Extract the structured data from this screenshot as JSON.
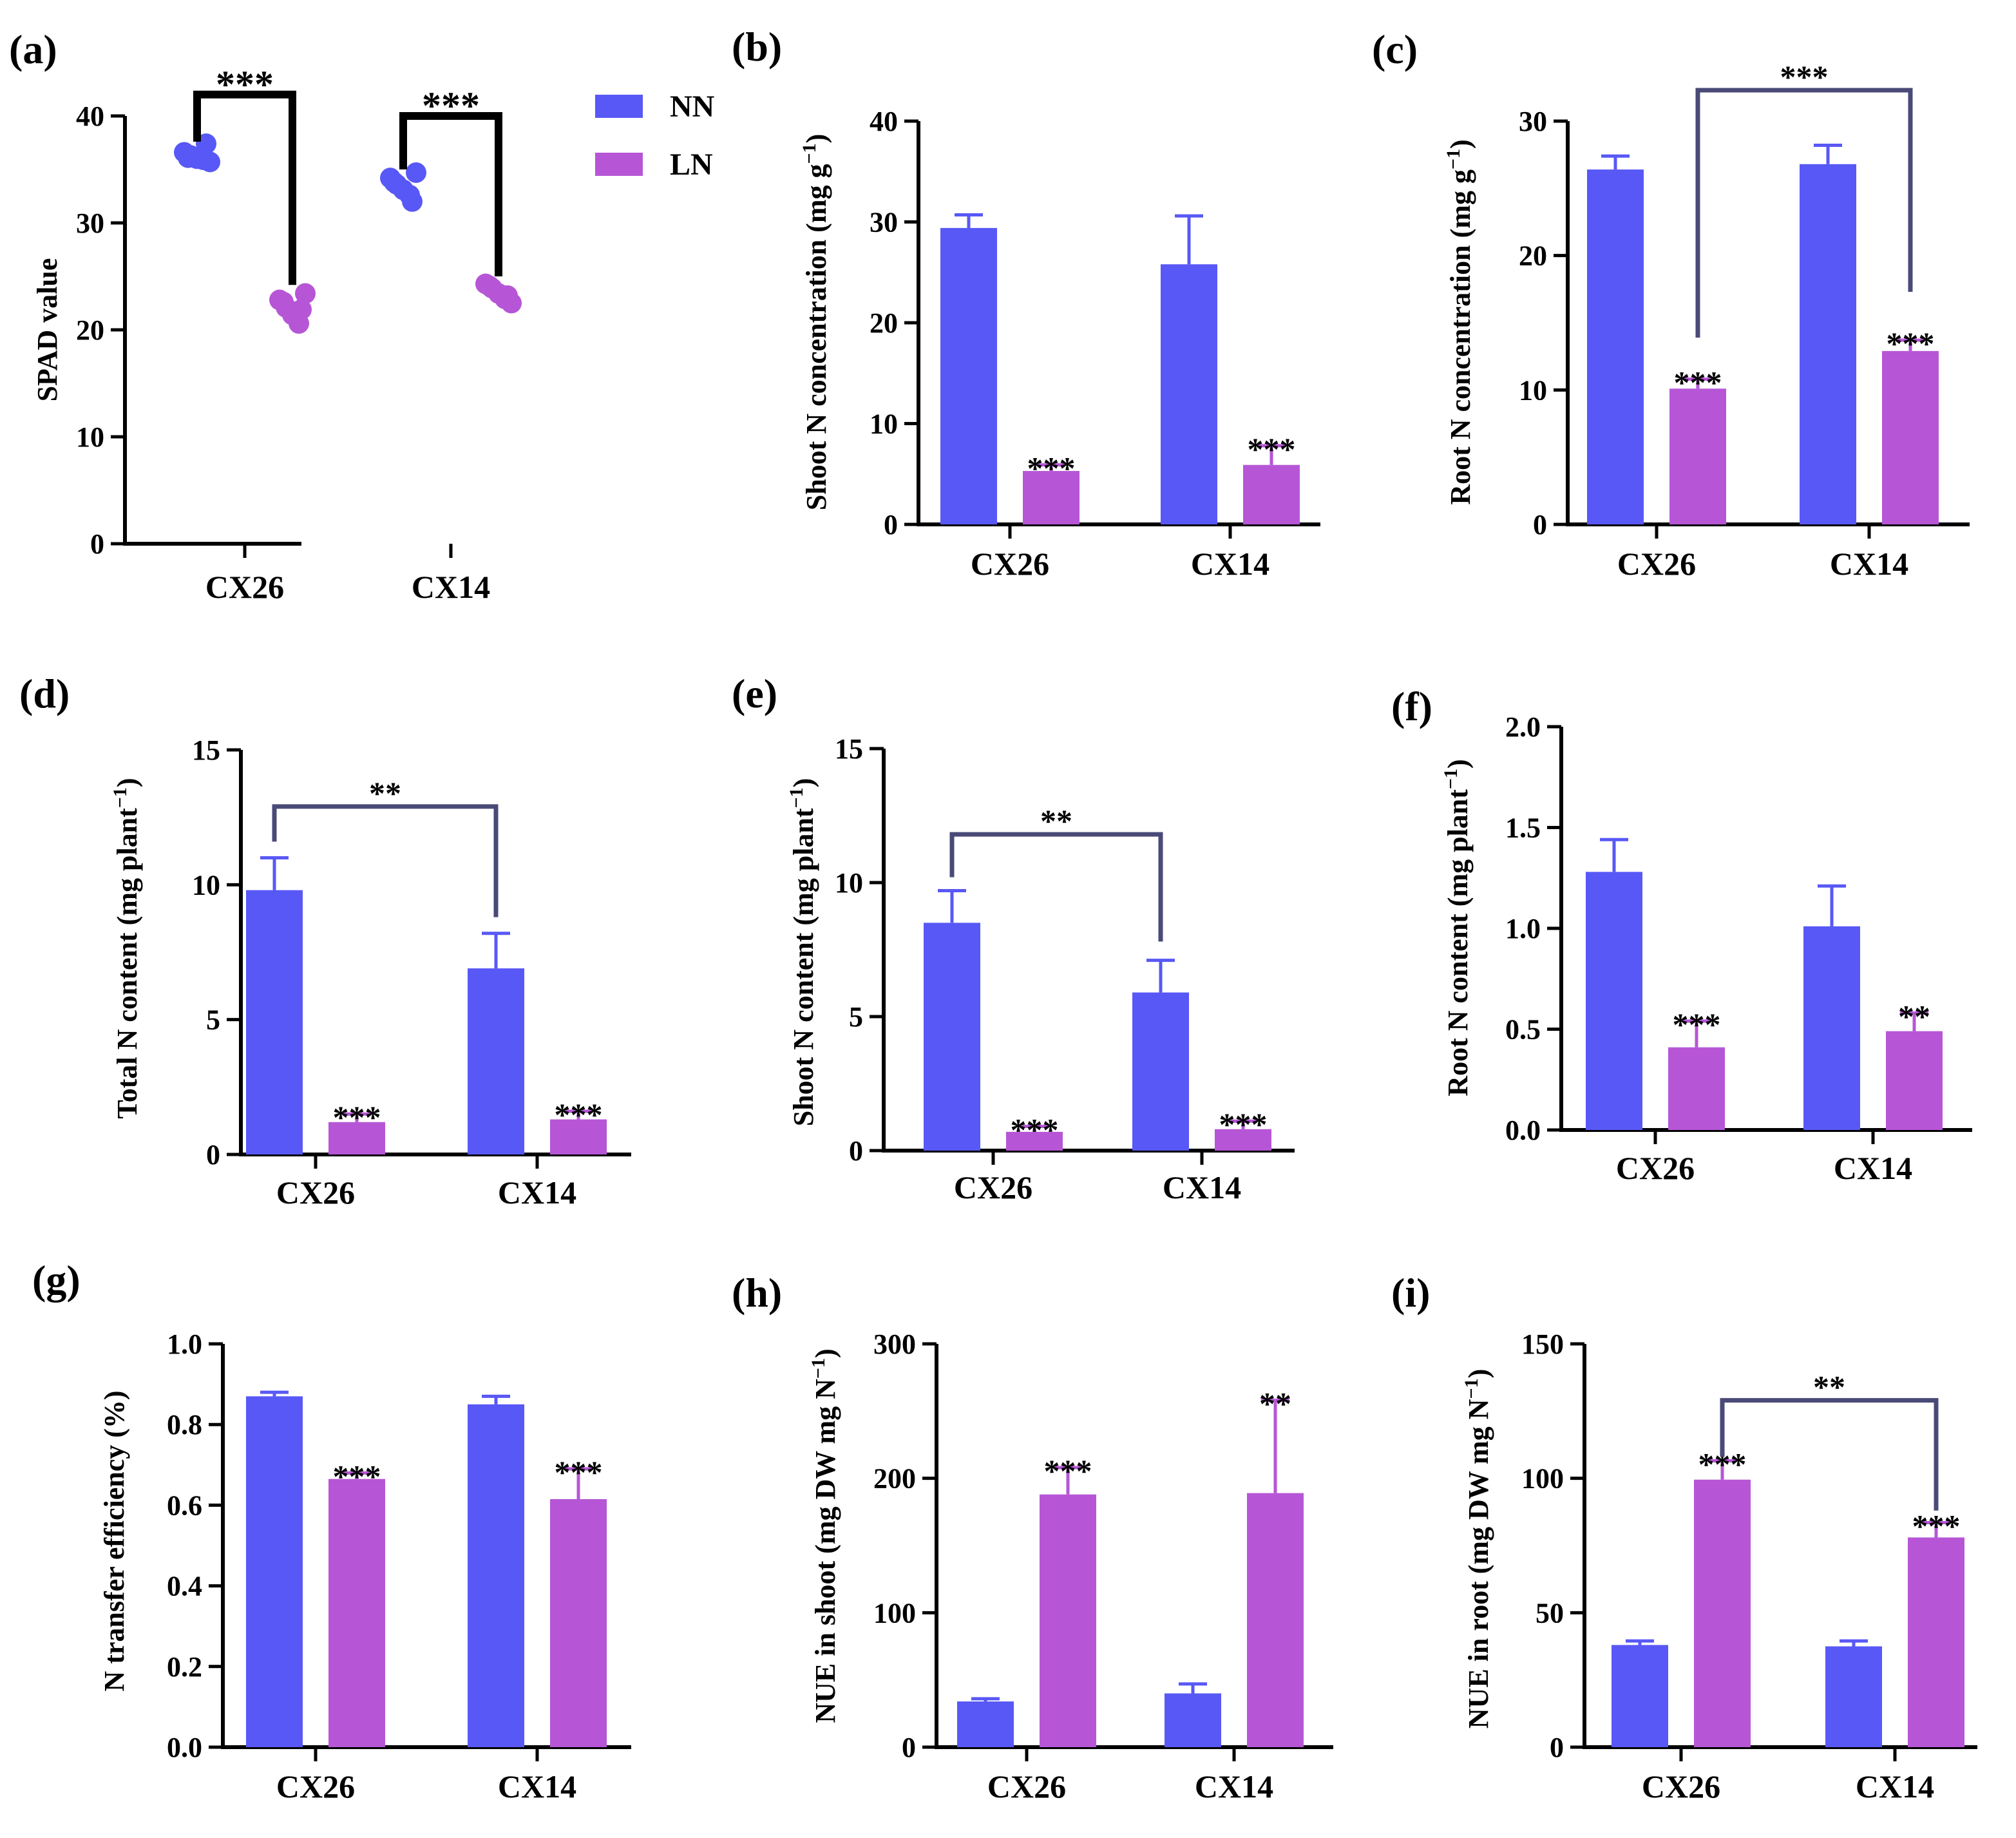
{
  "colors": {
    "NN": "#5858F6",
    "LN": "#B656D6",
    "axis": "#000000",
    "bracket": "#4A4A78"
  },
  "legend": [
    {
      "key": "NN",
      "label": "NN"
    },
    {
      "key": "LN",
      "label": "LN"
    }
  ],
  "panel_labels": [
    "(a)",
    "(b)",
    "(c)",
    "(d)",
    "(e)",
    "(f)",
    "(g)",
    "(h)",
    "(i)"
  ],
  "chart_data": [
    {
      "id": "a",
      "type": "scatter",
      "title": "",
      "xlabel": "",
      "ylabel": "SPAD value",
      "categories": [
        "CX26",
        "CX14"
      ],
      "ylim": [
        0,
        40
      ],
      "yticks": [
        "0",
        "10",
        "20",
        "30",
        "40"
      ],
      "series": [
        {
          "name": "NN",
          "points": [
            [
              36.6,
              36.3,
              36.0,
              35.9,
              35.7,
              36.1,
              37.4
            ],
            [
              34.2,
              33.6,
              33.1,
              32.6,
              34.7,
              33.8,
              32.0
            ]
          ]
        },
        {
          "name": "LN",
          "points": [
            [
              22.8,
              22.1,
              21.4,
              20.6,
              23.4,
              22.6,
              21.9
            ],
            [
              24.3,
              23.9,
              23.4,
              22.9,
              22.5,
              24.1,
              23.2
            ]
          ]
        }
      ],
      "annotations": [
        {
          "type": "bracket",
          "from": [
            0,
            "NN"
          ],
          "to": [
            0,
            "LN"
          ],
          "y": 42,
          "text": "***"
        },
        {
          "type": "bracket",
          "from": [
            1,
            "NN"
          ],
          "to": [
            1,
            "LN"
          ],
          "y": 40,
          "text": "***"
        }
      ]
    },
    {
      "id": "b",
      "type": "bar",
      "title": "",
      "xlabel": "",
      "ylabel": "Shoot N concentration (mg g",
      "ylabel_sup": "−1",
      "ylabel_end": ")",
      "categories": [
        "CX26",
        "CX14"
      ],
      "ylim": [
        0,
        40
      ],
      "yticks": [
        "0",
        "10",
        "20",
        "30",
        "40"
      ],
      "series": [
        {
          "name": "NN",
          "values": [
            29.4,
            25.8
          ],
          "errors": [
            1.3,
            4.8
          ],
          "stars": [
            "",
            ""
          ]
        },
        {
          "name": "LN",
          "values": [
            5.3,
            5.9
          ],
          "errors": [
            0.6,
            1.9
          ],
          "stars": [
            "***",
            "***"
          ]
        }
      ],
      "brackets": []
    },
    {
      "id": "c",
      "type": "bar",
      "title": "",
      "xlabel": "",
      "ylabel": "Root N concentration (mg g",
      "ylabel_sup": "−1",
      "ylabel_end": ")",
      "categories": [
        "CX26",
        "CX14"
      ],
      "ylim": [
        0,
        30
      ],
      "yticks": [
        "0",
        "10",
        "20",
        "30"
      ],
      "series": [
        {
          "name": "NN",
          "values": [
            26.4,
            26.8
          ],
          "errors": [
            1.0,
            1.4
          ],
          "stars": [
            "",
            ""
          ]
        },
        {
          "name": "LN",
          "values": [
            10.1,
            12.9
          ],
          "errors": [
            0.7,
            0.8
          ],
          "stars": [
            "***",
            "***"
          ]
        }
      ],
      "brackets": [
        {
          "from": [
            0,
            "LN"
          ],
          "to": [
            1,
            "LN"
          ],
          "y": 32.3,
          "drop_to": [
            13.9,
            17.3
          ],
          "text": "***"
        }
      ]
    },
    {
      "id": "d",
      "type": "bar",
      "title": "",
      "xlabel": "",
      "ylabel": "Total N content (mg plant",
      "ylabel_sup": "−1",
      "ylabel_end": ")",
      "categories": [
        "CX26",
        "CX14"
      ],
      "ylim": [
        0,
        15
      ],
      "yticks": [
        "0",
        "5",
        "10",
        "15"
      ],
      "series": [
        {
          "name": "NN",
          "values": [
            9.8,
            6.9
          ],
          "errors": [
            1.2,
            1.3
          ],
          "stars": [
            "",
            ""
          ]
        },
        {
          "name": "LN",
          "values": [
            1.2,
            1.3
          ],
          "errors": [
            0.3,
            0.3
          ],
          "stars": [
            "***",
            "***"
          ]
        }
      ],
      "brackets": [
        {
          "from": [
            0,
            "NN"
          ],
          "to": [
            1,
            "NN"
          ],
          "y": 12.9,
          "drop_to": [
            11.6,
            8.8
          ],
          "text": "**"
        }
      ]
    },
    {
      "id": "e",
      "type": "bar",
      "title": "",
      "xlabel": "",
      "ylabel": "Shoot N content (mg plant",
      "ylabel_sup": "−1",
      "ylabel_end": ")",
      "categories": [
        "CX26",
        "CX14"
      ],
      "ylim": [
        0,
        15
      ],
      "yticks": [
        "0",
        "5",
        "10",
        "15"
      ],
      "series": [
        {
          "name": "NN",
          "values": [
            8.5,
            5.9
          ],
          "errors": [
            1.2,
            1.2
          ],
          "stars": [
            "",
            ""
          ]
        },
        {
          "name": "LN",
          "values": [
            0.7,
            0.8
          ],
          "errors": [
            0.2,
            0.3
          ],
          "stars": [
            "***",
            "***"
          ]
        }
      ],
      "brackets": [
        {
          "from": [
            0,
            "NN"
          ],
          "to": [
            1,
            "NN"
          ],
          "y": 11.8,
          "drop_to": [
            10.2,
            7.8
          ],
          "text": "**"
        }
      ]
    },
    {
      "id": "f",
      "type": "bar",
      "title": "",
      "xlabel": "",
      "ylabel": "Root N content (mg plant",
      "ylabel_sup": "−1",
      "ylabel_end": ")",
      "categories": [
        "CX26",
        "CX14"
      ],
      "ylim": [
        0,
        2
      ],
      "yticks": [
        "0.0",
        "0.5",
        "1.0",
        "1.5",
        "2.0"
      ],
      "series": [
        {
          "name": "NN",
          "values": [
            1.28,
            1.01
          ],
          "errors": [
            0.16,
            0.2
          ],
          "stars": [
            "",
            ""
          ]
        },
        {
          "name": "LN",
          "values": [
            0.41,
            0.49
          ],
          "errors": [
            0.13,
            0.09
          ],
          "stars": [
            "***",
            "**"
          ]
        }
      ],
      "brackets": []
    },
    {
      "id": "g",
      "type": "bar",
      "title": "",
      "xlabel": "",
      "ylabel": "N transfer efficiency (%)",
      "ylabel_sup": "",
      "ylabel_end": "",
      "categories": [
        "CX26",
        "CX14"
      ],
      "ylim": [
        0,
        1
      ],
      "yticks": [
        "0.0",
        "0.2",
        "0.4",
        "0.6",
        "0.8",
        "1.0"
      ],
      "series": [
        {
          "name": "NN",
          "values": [
            0.87,
            0.85
          ],
          "errors": [
            0.01,
            0.02
          ],
          "stars": [
            "",
            ""
          ]
        },
        {
          "name": "LN",
          "values": [
            0.665,
            0.615
          ],
          "errors": [
            0.015,
            0.075
          ],
          "stars": [
            "***",
            "***"
          ]
        }
      ],
      "brackets": []
    },
    {
      "id": "h",
      "type": "bar",
      "title": "",
      "xlabel": "",
      "ylabel": "NUE in shoot (mg DW mg N",
      "ylabel_sup": "−1",
      "ylabel_end": ")",
      "categories": [
        "CX26",
        "CX14"
      ],
      "ylim": [
        0,
        300
      ],
      "yticks": [
        "0",
        "100",
        "200",
        "300"
      ],
      "series": [
        {
          "name": "NN",
          "values": [
            34,
            40
          ],
          "errors": [
            2,
            7
          ],
          "stars": [
            "",
            ""
          ]
        },
        {
          "name": "LN",
          "values": [
            188,
            189
          ],
          "errors": [
            20,
            69
          ],
          "stars": [
            "***",
            "**"
          ]
        }
      ],
      "brackets": []
    },
    {
      "id": "i",
      "type": "bar",
      "title": "",
      "xlabel": "",
      "ylabel": "NUE in root (mg DW mg N",
      "ylabel_sup": "−1",
      "ylabel_end": ")",
      "categories": [
        "CX26",
        "CX14"
      ],
      "ylim": [
        0,
        150
      ],
      "yticks": [
        "0",
        "50",
        "100",
        "150"
      ],
      "series": [
        {
          "name": "NN",
          "values": [
            38,
            37.5
          ],
          "errors": [
            1.5,
            2
          ],
          "stars": [
            "",
            ""
          ]
        },
        {
          "name": "LN",
          "values": [
            99.5,
            78
          ],
          "errors": [
            7,
            5.5
          ],
          "stars": [
            "***",
            "***"
          ]
        }
      ],
      "brackets": [
        {
          "from": [
            0,
            "LN"
          ],
          "to": [
            1,
            "LN"
          ],
          "y": 129,
          "drop_to": [
            108,
            88
          ],
          "text": "**"
        }
      ]
    }
  ]
}
